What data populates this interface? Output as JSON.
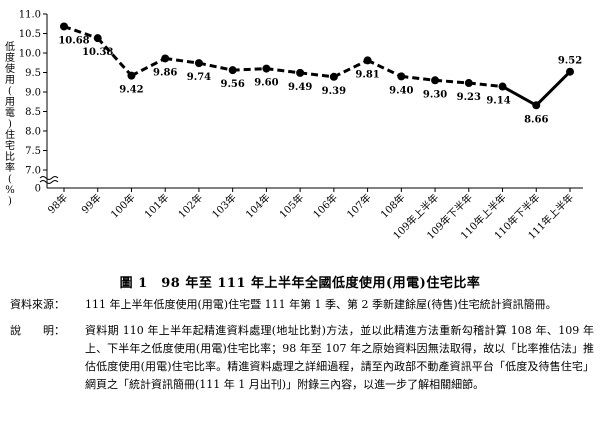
{
  "chart_data": {
    "type": "line",
    "title": "",
    "ylabel": "低度使用(用電)住宅比率(%)",
    "ylim": [
      7.0,
      11.0
    ],
    "yticks": [
      7.0,
      7.5,
      8.0,
      8.5,
      9.0,
      9.5,
      10.0,
      10.5,
      11.0
    ],
    "y_axis_extra_tick": "0",
    "axis_break": true,
    "categories": [
      "98年",
      "99年",
      "100年",
      "101年",
      "102年",
      "103年",
      "104年",
      "105年",
      "106年",
      "107年",
      "108年",
      "109年上半年",
      "109年下半年",
      "110年上半年",
      "110年下半年",
      "111年上半年"
    ],
    "values": [
      10.68,
      10.38,
      9.42,
      9.86,
      9.74,
      9.56,
      9.6,
      9.49,
      9.39,
      9.81,
      9.4,
      9.3,
      9.23,
      9.14,
      8.66,
      9.52
    ],
    "data_labels": [
      "10.68",
      "10.38",
      "9.42",
      "9.86",
      "9.74",
      "9.56",
      "9.60",
      "9.49",
      "9.39",
      "9.81",
      "9.40",
      "9.30",
      "9.23",
      "9.14",
      "8.66",
      "9.52"
    ],
    "line_style_segments": [
      "dashed",
      "dashed",
      "dashed",
      "dashed",
      "dashed",
      "dashed",
      "dashed",
      "dashed",
      "dashed",
      "dashed",
      "dashed",
      "dashed",
      "dashed",
      "solid",
      "solid"
    ],
    "grid": false,
    "legend": "none"
  },
  "caption": "圖 1　98 年至 111 年上半年全國低度使用(用電)住宅比率",
  "notes": [
    {
      "label": "資料來源：",
      "text": "111 年上半年低度使用(用電)住宅暨 111 年第 1 季、第 2 季新建餘屋(待售)住宅統計資訊簡冊。"
    },
    {
      "label": "說　　明：",
      "text": "資料期 110 年上半年起精進資料處理(地址比對)方法，並以此精進方法重新勾稽計算 108 年、109 年上、下半年之低度使用(用電)住宅比率；98 年至 107 年之原始資料因無法取得，故以「比率推估法」推估低度使用(用電)住宅比率。精進資料處理之詳細過程，請至內政部不動產資訊平台「低度及待售住宅」網頁之「統計資訊簡冊(111 年 1 月出刊)」附錄三內容，以進一步了解相關細節。"
    }
  ]
}
